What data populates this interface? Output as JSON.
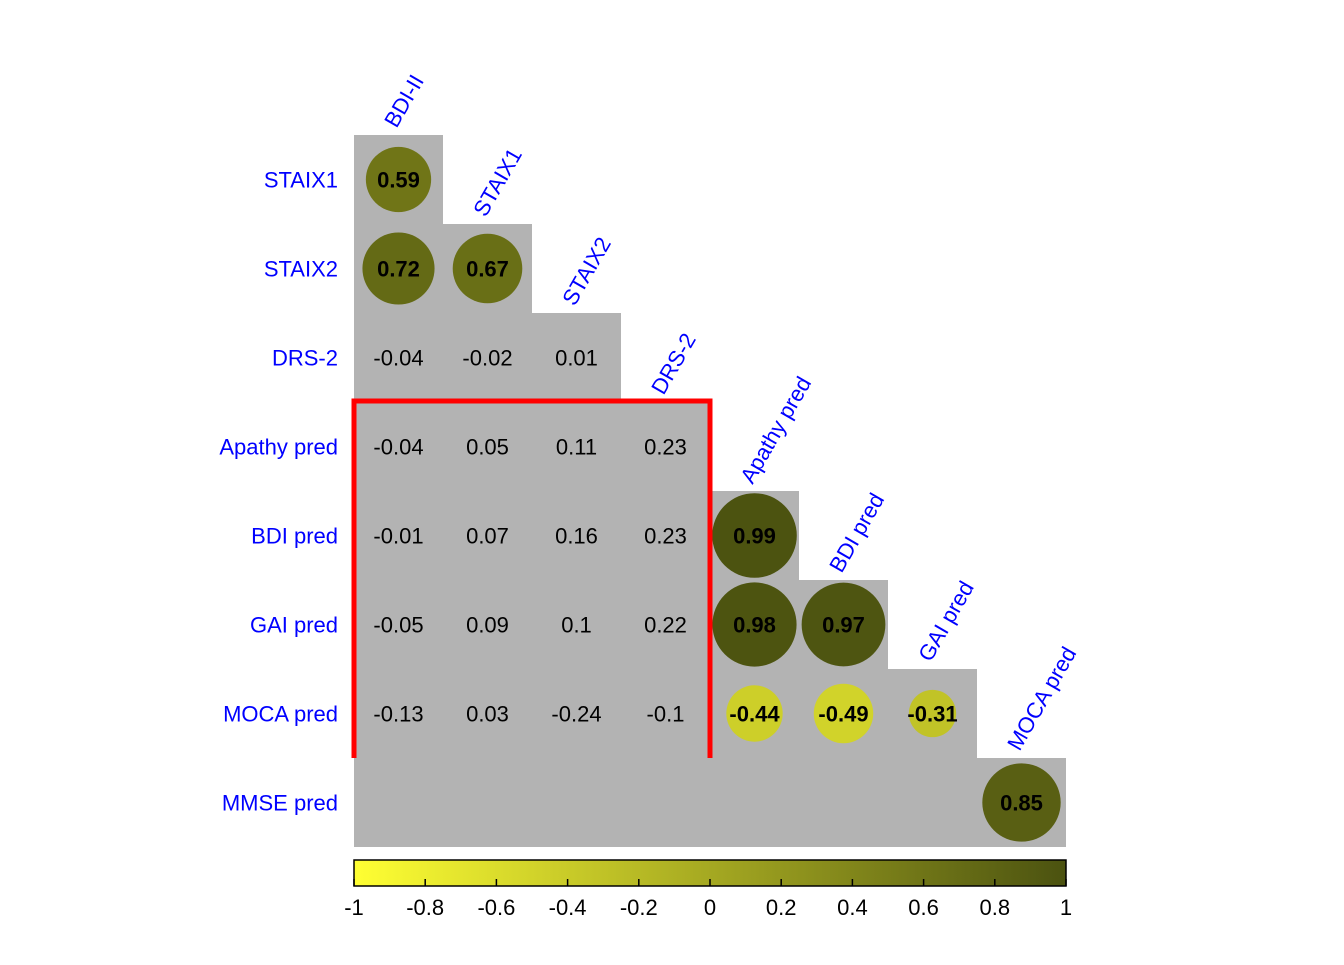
{
  "chart_data": {
    "type": "heatmap",
    "variables": [
      "BDI-II",
      "STAIX1",
      "STAIX2",
      "DRS-2",
      "Apathy pred",
      "BDI pred",
      "GAI pred",
      "MOCA pred",
      "MMSE pred"
    ],
    "matrix": [
      [
        null,
        null,
        null,
        null,
        null,
        null,
        null,
        null
      ],
      [
        0.59,
        null,
        null,
        null,
        null,
        null,
        null,
        null
      ],
      [
        0.72,
        0.67,
        null,
        null,
        null,
        null,
        null,
        null
      ],
      [
        -0.04,
        -0.02,
        0.01,
        null,
        null,
        null,
        null,
        null
      ],
      [
        -0.04,
        0.05,
        0.11,
        0.23,
        null,
        null,
        null,
        null
      ],
      [
        -0.01,
        0.07,
        0.16,
        0.23,
        0.99,
        null,
        null,
        null
      ],
      [
        -0.05,
        0.09,
        0.1,
        0.22,
        0.98,
        0.97,
        null,
        null
      ],
      [
        -0.13,
        0.03,
        -0.24,
        -0.1,
        -0.44,
        -0.49,
        -0.31,
        null
      ],
      [
        null,
        null,
        null,
        null,
        null,
        null,
        null,
        0.85
      ]
    ],
    "significant": [
      [
        false,
        false,
        false,
        false,
        false,
        false,
        false,
        false
      ],
      [
        true,
        false,
        false,
        false,
        false,
        false,
        false,
        false
      ],
      [
        true,
        true,
        false,
        false,
        false,
        false,
        false,
        false
      ],
      [
        false,
        false,
        false,
        false,
        false,
        false,
        false,
        false
      ],
      [
        false,
        false,
        false,
        false,
        false,
        false,
        false,
        false
      ],
      [
        false,
        false,
        false,
        false,
        true,
        false,
        false,
        false
      ],
      [
        false,
        false,
        false,
        false,
        true,
        true,
        false,
        false
      ],
      [
        false,
        false,
        false,
        false,
        true,
        true,
        true,
        false
      ],
      [
        false,
        false,
        false,
        false,
        false,
        false,
        false,
        true
      ]
    ],
    "color_scale": {
      "min": -1,
      "max": 1,
      "low_color": "#ffff33",
      "high_color": "#4b5210",
      "ticks": [
        -1,
        -0.8,
        -0.6,
        -0.4,
        -0.2,
        0,
        0.2,
        0.4,
        0.6,
        0.8,
        1
      ],
      "tick_labels": [
        "-1",
        "-0.8",
        "-0.6",
        "-0.4",
        "-0.2",
        "0",
        "0.2",
        "0.4",
        "0.6",
        "0.8",
        "1"
      ]
    },
    "highlight_box": {
      "rows": [
        "Apathy pred",
        "BDI pred",
        "GAI pred",
        "MOCA pred"
      ],
      "columns": [
        "BDI-II",
        "STAIX1",
        "STAIX2",
        "DRS-2"
      ],
      "color": "#ff0000"
    },
    "label_color": "#0000ff",
    "cell_bg_color": "#b3b3b3"
  }
}
